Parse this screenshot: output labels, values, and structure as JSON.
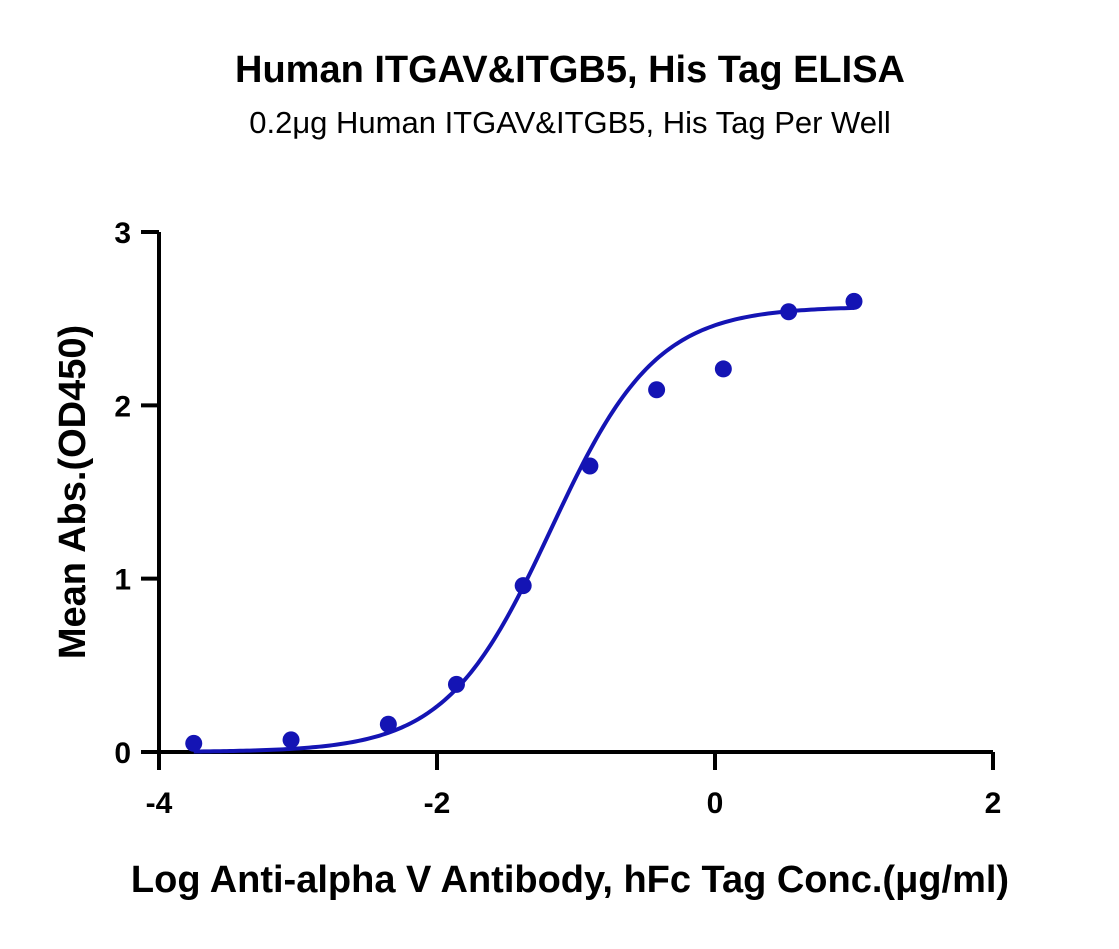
{
  "chart_data": {
    "type": "scatter",
    "title": "Human ITGAV&ITGB5, His Tag ELISA",
    "subtitle": "0.2μg Human ITGAV&ITGB5, His Tag Per Well",
    "xlabel": "Log Anti-alpha V Antibody, hFc Tag Conc.(μg/ml)",
    "ylabel": "Mean Abs.(OD450)",
    "xlim": [
      -4,
      2
    ],
    "ylim": [
      0,
      3
    ],
    "x_ticks": [
      -4,
      -2,
      0,
      2
    ],
    "y_ticks": [
      0,
      1,
      2,
      3
    ],
    "x_tick_labels": [
      "-4",
      "-2",
      "0",
      "2"
    ],
    "y_tick_labels": [
      "0",
      "1",
      "2",
      "3"
    ],
    "grid": false,
    "legend": "none",
    "color": "#1414b4",
    "series": [
      {
        "points": [
          {
            "x": -3.75,
            "y": 0.05
          },
          {
            "x": -3.05,
            "y": 0.07
          },
          {
            "x": -2.35,
            "y": 0.16
          },
          {
            "x": -1.86,
            "y": 0.39
          },
          {
            "x": -1.38,
            "y": 0.96
          },
          {
            "x": -0.9,
            "y": 1.65
          },
          {
            "x": -0.42,
            "y": 2.09
          },
          {
            "x": 0.06,
            "y": 2.21
          },
          {
            "x": 0.53,
            "y": 2.54
          },
          {
            "x": 1.0,
            "y": 2.6
          }
        ]
      }
    ],
    "fit_curve": {
      "model": "four-parameter logistic",
      "bottom": 0.0,
      "top": 2.57,
      "log_ec50": -1.18,
      "hill_slope": 1.15,
      "x_range": [
        -3.75,
        1.0
      ]
    }
  }
}
